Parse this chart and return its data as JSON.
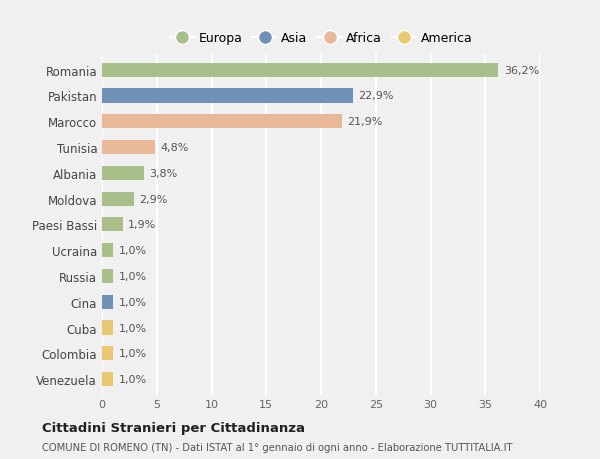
{
  "categories": [
    "Romania",
    "Pakistan",
    "Marocco",
    "Tunisia",
    "Albania",
    "Moldova",
    "Paesi Bassi",
    "Ucraina",
    "Russia",
    "Cina",
    "Cuba",
    "Colombia",
    "Venezuela"
  ],
  "values": [
    36.2,
    22.9,
    21.9,
    4.8,
    3.8,
    2.9,
    1.9,
    1.0,
    1.0,
    1.0,
    1.0,
    1.0,
    1.0
  ],
  "colors": [
    "#a8bf8a",
    "#7090b8",
    "#e8b898",
    "#e8b898",
    "#a8bf8a",
    "#a8bf8a",
    "#a8bf8a",
    "#a8bf8a",
    "#a8bf8a",
    "#7090b8",
    "#e8c870",
    "#e8c870",
    "#e8c870"
  ],
  "labels": [
    "36,2%",
    "22,9%",
    "21,9%",
    "4,8%",
    "3,8%",
    "2,9%",
    "1,9%",
    "1,0%",
    "1,0%",
    "1,0%",
    "1,0%",
    "1,0%",
    "1,0%"
  ],
  "legend_labels": [
    "Europa",
    "Asia",
    "Africa",
    "America"
  ],
  "legend_colors": [
    "#a8bf8a",
    "#7090b8",
    "#e8b898",
    "#e8c870"
  ],
  "title": "Cittadini Stranieri per Cittadinanza",
  "subtitle": "COMUNE DI ROMENO (TN) - Dati ISTAT al 1° gennaio di ogni anno - Elaborazione TUTTITALIA.IT",
  "xlim": [
    0,
    40
  ],
  "xticks": [
    0,
    5,
    10,
    15,
    20,
    25,
    30,
    35,
    40
  ],
  "background_color": "#f0f0f0",
  "grid_color": "#ffffff",
  "bar_height": 0.55
}
